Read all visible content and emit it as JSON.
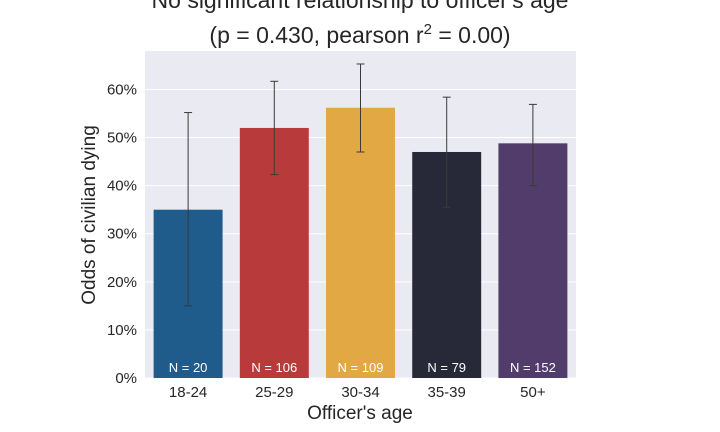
{
  "chart_data": {
    "type": "bar",
    "title_line1": "No significant relationship to officer's age",
    "title_line2_prefix": "(p = 0.430, pearson r",
    "title_line2_sup": "2",
    "title_line2_suffix": " = 0.00)",
    "xlabel": "Officer's age",
    "ylabel": "Odds of civilian dying",
    "categories": [
      "18-24",
      "25-29",
      "30-34",
      "35-39",
      "50+"
    ],
    "values": [
      0.35,
      0.52,
      0.562,
      0.47,
      0.488
    ],
    "ci_low": [
      0.15,
      0.423,
      0.47,
      0.355,
      0.4
    ],
    "ci_high": [
      0.552,
      0.617,
      0.653,
      0.584,
      0.569
    ],
    "n_labels": [
      "N = 20",
      "N = 106",
      "N = 109",
      "N = 79",
      "N = 152"
    ],
    "colors": [
      "#1f5b8b",
      "#b93a3a",
      "#e2a843",
      "#272838",
      "#513c6b"
    ],
    "ylim": [
      0,
      0.68
    ],
    "yticks": [
      0,
      0.1,
      0.2,
      0.3,
      0.4,
      0.5,
      0.6
    ],
    "ytick_labels": [
      "0%",
      "10%",
      "20%",
      "30%",
      "40%",
      "50%",
      "60%"
    ],
    "grid": true,
    "background_color": "#eaeaf2",
    "grid_color": "#ffffff"
  }
}
